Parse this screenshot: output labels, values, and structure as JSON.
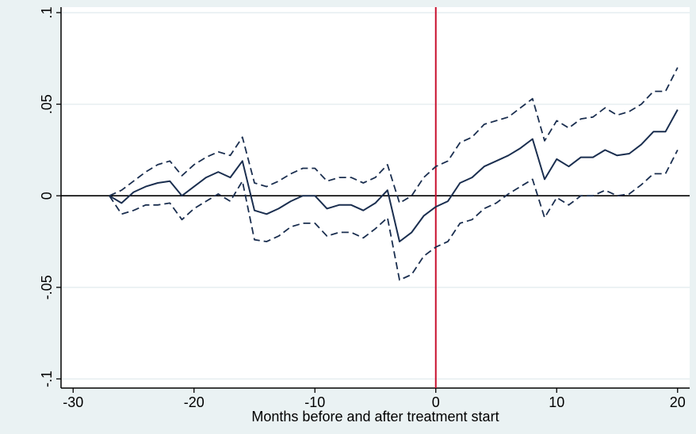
{
  "chart_data": {
    "type": "line",
    "title": "",
    "xlabel": "Months before and after treatment start",
    "ylabel": "",
    "xlim": [
      -31,
      21
    ],
    "ylim": [
      -0.105,
      0.103
    ],
    "xticks": [
      -30,
      -20,
      -10,
      0,
      10,
      20
    ],
    "xtick_labels": [
      "-30",
      "-20",
      "-10",
      "0",
      "10",
      "20"
    ],
    "yticks": [
      -0.1,
      -0.05,
      0,
      0.05,
      0.1
    ],
    "ytick_labels": [
      "-.1",
      "-.05",
      "0",
      ".05",
      ".1"
    ],
    "grid": "horizontal",
    "reference_lines": [
      {
        "axis": "y",
        "value": 0,
        "color": "#000000"
      },
      {
        "axis": "x",
        "value": 0,
        "color": "#c8102e"
      }
    ],
    "colors": {
      "background": "#eaf2f3",
      "plot_background": "#ffffff",
      "grid": "#e6eef0",
      "series": "#1a2e4f"
    },
    "x": [
      -27,
      -26,
      -25,
      -24,
      -23,
      -22,
      -21,
      -20,
      -19,
      -18,
      -17,
      -16,
      -15,
      -14,
      -13,
      -12,
      -11,
      -10,
      -9,
      -8,
      -7,
      -6,
      -5,
      -4,
      -3,
      -2,
      -1,
      0,
      1,
      2,
      3,
      4,
      5,
      6,
      7,
      8,
      9,
      10,
      11,
      12,
      13,
      14,
      15,
      16,
      17,
      18,
      19,
      20
    ],
    "series": [
      {
        "style": "solid",
        "values": [
          0,
          -0.004,
          0.002,
          0.005,
          0.007,
          0.008,
          0,
          0.005,
          0.01,
          0.013,
          0.01,
          0.019,
          -0.008,
          -0.01,
          -0.007,
          -0.003,
          0.0,
          0.0,
          -0.007,
          -0.005,
          -0.005,
          -0.008,
          -0.004,
          0.003,
          -0.025,
          -0.02,
          -0.011,
          -0.006,
          -0.003,
          0.007,
          0.01,
          0.016,
          0.019,
          0.022,
          0.026,
          0.031,
          0.009,
          0.02,
          0.016,
          0.021,
          0.021,
          0.025,
          0.022,
          0.023,
          0.028,
          0.035,
          0.035,
          0.047
        ]
      },
      {
        "style": "dashed",
        "values": [
          0,
          0.003,
          0.008,
          0.013,
          0.017,
          0.019,
          0.011,
          0.017,
          0.021,
          0.024,
          0.022,
          0.032,
          0.007,
          0.005,
          0.008,
          0.012,
          0.015,
          0.015,
          0.008,
          0.01,
          0.01,
          0.007,
          0.01,
          0.017,
          -0.004,
          0.0,
          0.01,
          0.016,
          0.019,
          0.029,
          0.032,
          0.039,
          0.041,
          0.043,
          0.048,
          0.053,
          0.03,
          0.041,
          0.037,
          0.042,
          0.043,
          0.048,
          0.044,
          0.046,
          0.05,
          0.057,
          0.057,
          0.07
        ]
      },
      {
        "style": "dashed",
        "values": [
          0,
          -0.01,
          -0.008,
          -0.005,
          -0.005,
          -0.004,
          -0.013,
          -0.007,
          -0.003,
          0.001,
          -0.003,
          0.008,
          -0.024,
          -0.025,
          -0.022,
          -0.017,
          -0.015,
          -0.015,
          -0.022,
          -0.02,
          -0.02,
          -0.023,
          -0.018,
          -0.012,
          -0.046,
          -0.043,
          -0.033,
          -0.028,
          -0.025,
          -0.015,
          -0.013,
          -0.007,
          -0.004,
          0.001,
          0.005,
          0.009,
          -0.012,
          -0.001,
          -0.005,
          0.0,
          0.0,
          0.003,
          0.0,
          0.001,
          0.006,
          0.012,
          0.012,
          0.025
        ]
      }
    ]
  }
}
